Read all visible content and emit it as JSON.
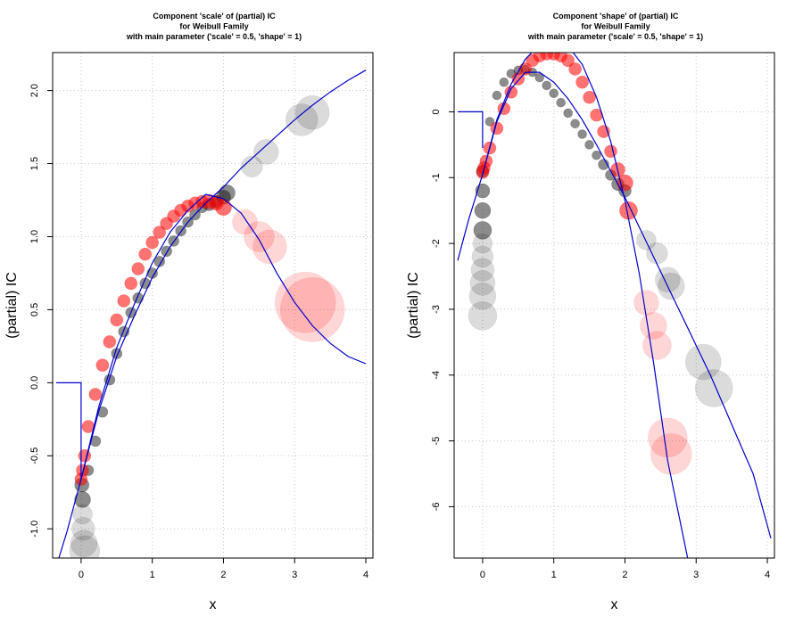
{
  "chart_data": [
    {
      "type": "line",
      "title_lines": [
        "Component 'scale' of (partial) IC",
        "for Weibull Family",
        "with main parameter ('scale' =  0.5, 'shape' =  1)"
      ],
      "xlabel": "x",
      "ylabel": "(partial) IC",
      "xlim": [
        -0.4,
        4.1
      ],
      "ylim": [
        -1.2,
        2.26
      ],
      "xticks": [
        0,
        1,
        2,
        3,
        4
      ],
      "xtick_labels": [
        "0",
        "1",
        "2",
        "3",
        "4"
      ],
      "yticks": [
        -1.0,
        -0.5,
        0.0,
        0.5,
        1.0,
        1.5,
        2.0
      ],
      "ytick_labels": [
        "-1.0",
        "-0.5",
        "0.0",
        "0.5",
        "1.0",
        "1.5",
        "2.0"
      ],
      "grid": true,
      "line_color": "#0000cc",
      "series": [
        {
          "style": "curve",
          "x": [
            0.0,
            0.25,
            0.5,
            0.75,
            1.0,
            1.25,
            1.5,
            1.75,
            2.0,
            2.25,
            2.5,
            2.75,
            3.0,
            3.25,
            3.5,
            3.75,
            4.0
          ],
          "y": [
            -0.66,
            -0.16,
            0.24,
            0.54,
            0.82,
            1.03,
            1.18,
            1.29,
            1.26,
            1.16,
            0.98,
            0.75,
            0.55,
            0.39,
            0.27,
            0.18,
            0.13
          ]
        },
        {
          "style": "curve",
          "x": [
            -0.35,
            -0.2,
            0.0,
            0.25,
            0.5,
            0.75,
            1.0,
            1.25,
            1.5,
            1.75,
            2.0,
            2.25,
            2.5,
            2.75,
            3.0,
            3.25,
            3.5,
            3.75,
            4.0
          ],
          "y": [
            -1.26,
            -1.02,
            -0.66,
            -0.19,
            0.18,
            0.46,
            0.72,
            0.93,
            1.1,
            1.23,
            1.34,
            1.47,
            1.58,
            1.69,
            1.8,
            1.9,
            1.99,
            2.07,
            2.14
          ]
        },
        {
          "style": "step",
          "x": [
            -0.35,
            0.0,
            0.0
          ],
          "y": [
            0.0,
            0.0,
            -0.66
          ]
        }
      ],
      "point_groups": [
        {
          "color": "#000000",
          "x": [
            0.01,
            0.02,
            0.02,
            0.03,
            0.04,
            0.05,
            0.1,
            0.2,
            0.3,
            0.4,
            0.5,
            0.6,
            0.7,
            0.8,
            0.9,
            1.0,
            1.1,
            1.2,
            1.3,
            1.4,
            1.5,
            1.6,
            1.7,
            1.8,
            1.9,
            2.0,
            2.05,
            2.4,
            2.6,
            3.1,
            3.25
          ],
          "y": [
            -0.7,
            -0.8,
            -0.9,
            -1.0,
            -1.1,
            -1.15,
            -0.6,
            -0.4,
            -0.2,
            0.02,
            0.2,
            0.35,
            0.48,
            0.58,
            0.68,
            0.75,
            0.83,
            0.9,
            0.97,
            1.04,
            1.1,
            1.15,
            1.2,
            1.22,
            1.24,
            1.27,
            1.3,
            1.48,
            1.58,
            1.8,
            1.85
          ],
          "size": [
            8,
            9,
            11,
            13,
            15,
            17,
            6,
            6,
            6,
            6,
            6,
            6,
            6,
            6,
            6,
            6,
            6,
            6,
            6,
            6,
            6,
            6,
            6,
            7,
            7,
            8,
            9,
            12,
            14,
            18,
            19
          ]
        },
        {
          "color": "#ff0000",
          "x": [
            0.0,
            0.02,
            0.05,
            0.1,
            0.2,
            0.3,
            0.4,
            0.5,
            0.6,
            0.7,
            0.8,
            0.9,
            1.0,
            1.1,
            1.2,
            1.3,
            1.4,
            1.5,
            1.6,
            1.7,
            1.8,
            1.9,
            2.0,
            2.3,
            2.5,
            2.65,
            3.15,
            3.25
          ],
          "y": [
            -0.66,
            -0.6,
            -0.5,
            -0.3,
            -0.08,
            0.12,
            0.28,
            0.43,
            0.56,
            0.68,
            0.78,
            0.88,
            0.96,
            1.03,
            1.09,
            1.14,
            1.18,
            1.21,
            1.23,
            1.24,
            1.24,
            1.23,
            1.2,
            1.1,
            1.0,
            0.93,
            0.55,
            0.5
          ],
          "size": [
            7,
            7,
            7,
            7,
            7,
            7,
            7,
            7,
            7,
            7,
            7,
            7,
            7,
            7,
            7,
            7,
            7,
            7,
            7,
            7,
            8,
            8,
            9,
            14,
            17,
            19,
            34,
            36
          ]
        }
      ]
    },
    {
      "type": "line",
      "title_lines": [
        "Component 'shape' of (partial) IC",
        "for Weibull Family",
        "with main parameter ('scale' =  0.5, 'shape' =  1)"
      ],
      "xlabel": "x",
      "ylabel": "(partial) IC",
      "xlim": [
        -0.4,
        4.1
      ],
      "ylim": [
        -6.78,
        0.9
      ],
      "xticks": [
        0,
        1,
        2,
        3,
        4
      ],
      "xtick_labels": [
        "0",
        "1",
        "2",
        "3",
        "4"
      ],
      "yticks": [
        0,
        -1,
        -2,
        -3,
        -4,
        -5,
        -6
      ],
      "ytick_labels": [
        "0",
        "-1",
        "-2",
        "-3",
        "-4",
        "-5",
        "-6"
      ],
      "grid": true,
      "line_color": "#0000cc",
      "series": [
        {
          "style": "curve",
          "x": [
            0.0,
            0.2,
            0.4,
            0.6,
            0.8,
            1.0,
            1.2,
            1.4,
            1.6,
            1.8,
            2.0,
            2.2,
            2.4,
            2.6,
            2.88
          ],
          "y": [
            -0.95,
            -0.12,
            0.42,
            0.8,
            1.02,
            1.1,
            1.0,
            0.72,
            0.22,
            -0.45,
            -1.35,
            -2.45,
            -3.8,
            -5.3,
            -6.78
          ]
        },
        {
          "style": "curve",
          "x": [
            -0.35,
            -0.2,
            0.0,
            0.2,
            0.4,
            0.6,
            0.8,
            1.0,
            1.2,
            1.4,
            1.6,
            1.8,
            2.0,
            2.2,
            2.4,
            2.6,
            2.8,
            3.0,
            3.2,
            3.4,
            3.6,
            3.8,
            4.05
          ],
          "y": [
            -2.26,
            -1.65,
            -0.95,
            -0.15,
            0.35,
            0.6,
            0.6,
            0.45,
            0.2,
            -0.12,
            -0.5,
            -0.9,
            -1.3,
            -1.75,
            -2.2,
            -2.65,
            -3.1,
            -3.55,
            -4.0,
            -4.5,
            -5.0,
            -5.5,
            -6.48
          ]
        },
        {
          "style": "step",
          "x": [
            -0.35,
            0.0,
            0.0
          ],
          "y": [
            0.0,
            0.0,
            -0.55
          ]
        }
      ],
      "point_groups": [
        {
          "color": "#000000",
          "x": [
            0.0,
            0.0,
            0.0,
            0.0,
            0.0,
            0.0,
            0.0,
            0.0,
            0.0,
            0.0,
            0.1,
            0.2,
            0.3,
            0.4,
            0.5,
            0.6,
            0.7,
            0.8,
            0.9,
            1.0,
            1.1,
            1.2,
            1.3,
            1.4,
            1.5,
            1.6,
            1.7,
            1.8,
            1.9,
            2.0,
            2.3,
            2.45,
            2.6,
            2.65,
            3.1,
            3.25
          ],
          "y": [
            -0.9,
            -1.2,
            -1.5,
            -1.8,
            -2.0,
            -2.2,
            -2.4,
            -2.6,
            -2.8,
            -3.1,
            -0.15,
            0.25,
            0.45,
            0.58,
            0.63,
            0.64,
            0.6,
            0.52,
            0.4,
            0.28,
            0.14,
            -0.02,
            -0.18,
            -0.34,
            -0.5,
            -0.66,
            -0.8,
            -0.96,
            -1.1,
            -1.2,
            -1.95,
            -2.15,
            -2.55,
            -2.65,
            -3.8,
            -4.2
          ],
          "size": [
            7,
            8,
            9,
            10,
            11,
            12,
            13,
            14,
            15,
            16,
            5,
            5,
            5,
            5,
            5,
            5,
            5,
            5,
            5,
            5,
            5,
            5,
            5,
            5,
            5,
            5,
            6,
            6,
            7,
            7,
            11,
            12,
            14,
            15,
            20,
            21
          ]
        },
        {
          "color": "#ff0000",
          "x": [
            0.0,
            0.02,
            0.05,
            0.1,
            0.2,
            0.3,
            0.4,
            0.5,
            0.6,
            0.7,
            0.8,
            0.9,
            1.0,
            1.1,
            1.2,
            1.3,
            1.4,
            1.5,
            1.6,
            1.7,
            1.8,
            1.9,
            2.0,
            2.05,
            2.3,
            2.4,
            2.45,
            2.6,
            2.65
          ],
          "y": [
            -0.92,
            -0.85,
            -0.75,
            -0.55,
            -0.25,
            0.05,
            0.3,
            0.5,
            0.65,
            0.78,
            0.85,
            0.88,
            0.88,
            0.85,
            0.78,
            0.65,
            0.45,
            0.22,
            -0.05,
            -0.3,
            -0.6,
            -0.88,
            -1.08,
            -1.5,
            -2.9,
            -3.25,
            -3.55,
            -4.95,
            -5.2
          ],
          "size": [
            7,
            7,
            7,
            7,
            7,
            7,
            7,
            7,
            7,
            7,
            7,
            7,
            7,
            7,
            7,
            7,
            7,
            7,
            7,
            7,
            7,
            8,
            9,
            10,
            14,
            15,
            16,
            22,
            23
          ]
        }
      ]
    }
  ]
}
